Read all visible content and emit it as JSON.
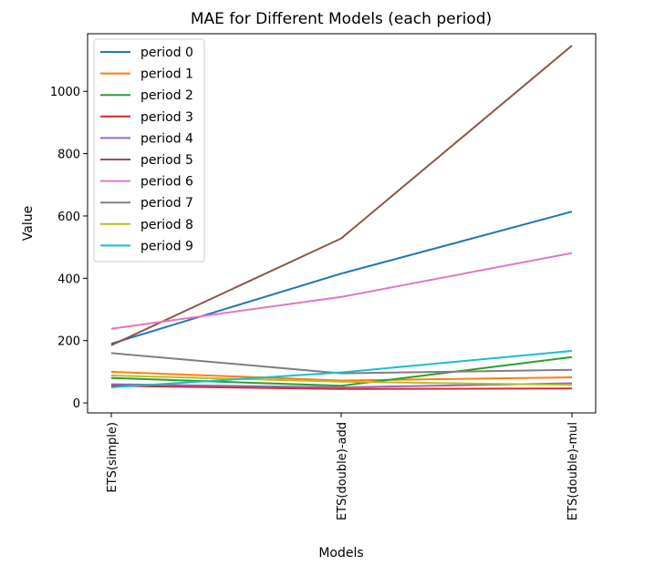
{
  "chart_data": {
    "type": "line",
    "title": "MAE for Different Models (each period)",
    "xlabel": "Models",
    "ylabel": "Value",
    "categories": [
      "ETS(simple)",
      "ETS(double)-add",
      "ETS(double)-mul"
    ],
    "ylim": [
      -32,
      1185
    ],
    "yticks": [
      0,
      200,
      400,
      600,
      800,
      1000
    ],
    "grid": false,
    "legend_position": "top-left",
    "series": [
      {
        "name": "period 0",
        "color": "#1f77b4",
        "values": [
          190,
          415,
          614
        ]
      },
      {
        "name": "period 1",
        "color": "#ff7f0e",
        "values": [
          100,
          72,
          82
        ]
      },
      {
        "name": "period 2",
        "color": "#2ca02c",
        "values": [
          80,
          55,
          147
        ]
      },
      {
        "name": "period 3",
        "color": "#d62728",
        "values": [
          55,
          45,
          46
        ]
      },
      {
        "name": "period 4",
        "color": "#9467bd",
        "values": [
          60,
          50,
          63
        ]
      },
      {
        "name": "period 5",
        "color": "#8c564b",
        "values": [
          185,
          528,
          1147
        ]
      },
      {
        "name": "period 6",
        "color": "#e377c2",
        "values": [
          238,
          340,
          481
        ]
      },
      {
        "name": "period 7",
        "color": "#7f7f7f",
        "values": [
          160,
          95,
          106
        ]
      },
      {
        "name": "period 8",
        "color": "#bcbd22",
        "values": [
          88,
          68,
          58
        ]
      },
      {
        "name": "period 9",
        "color": "#17becf",
        "values": [
          50,
          98,
          167
        ]
      }
    ]
  }
}
